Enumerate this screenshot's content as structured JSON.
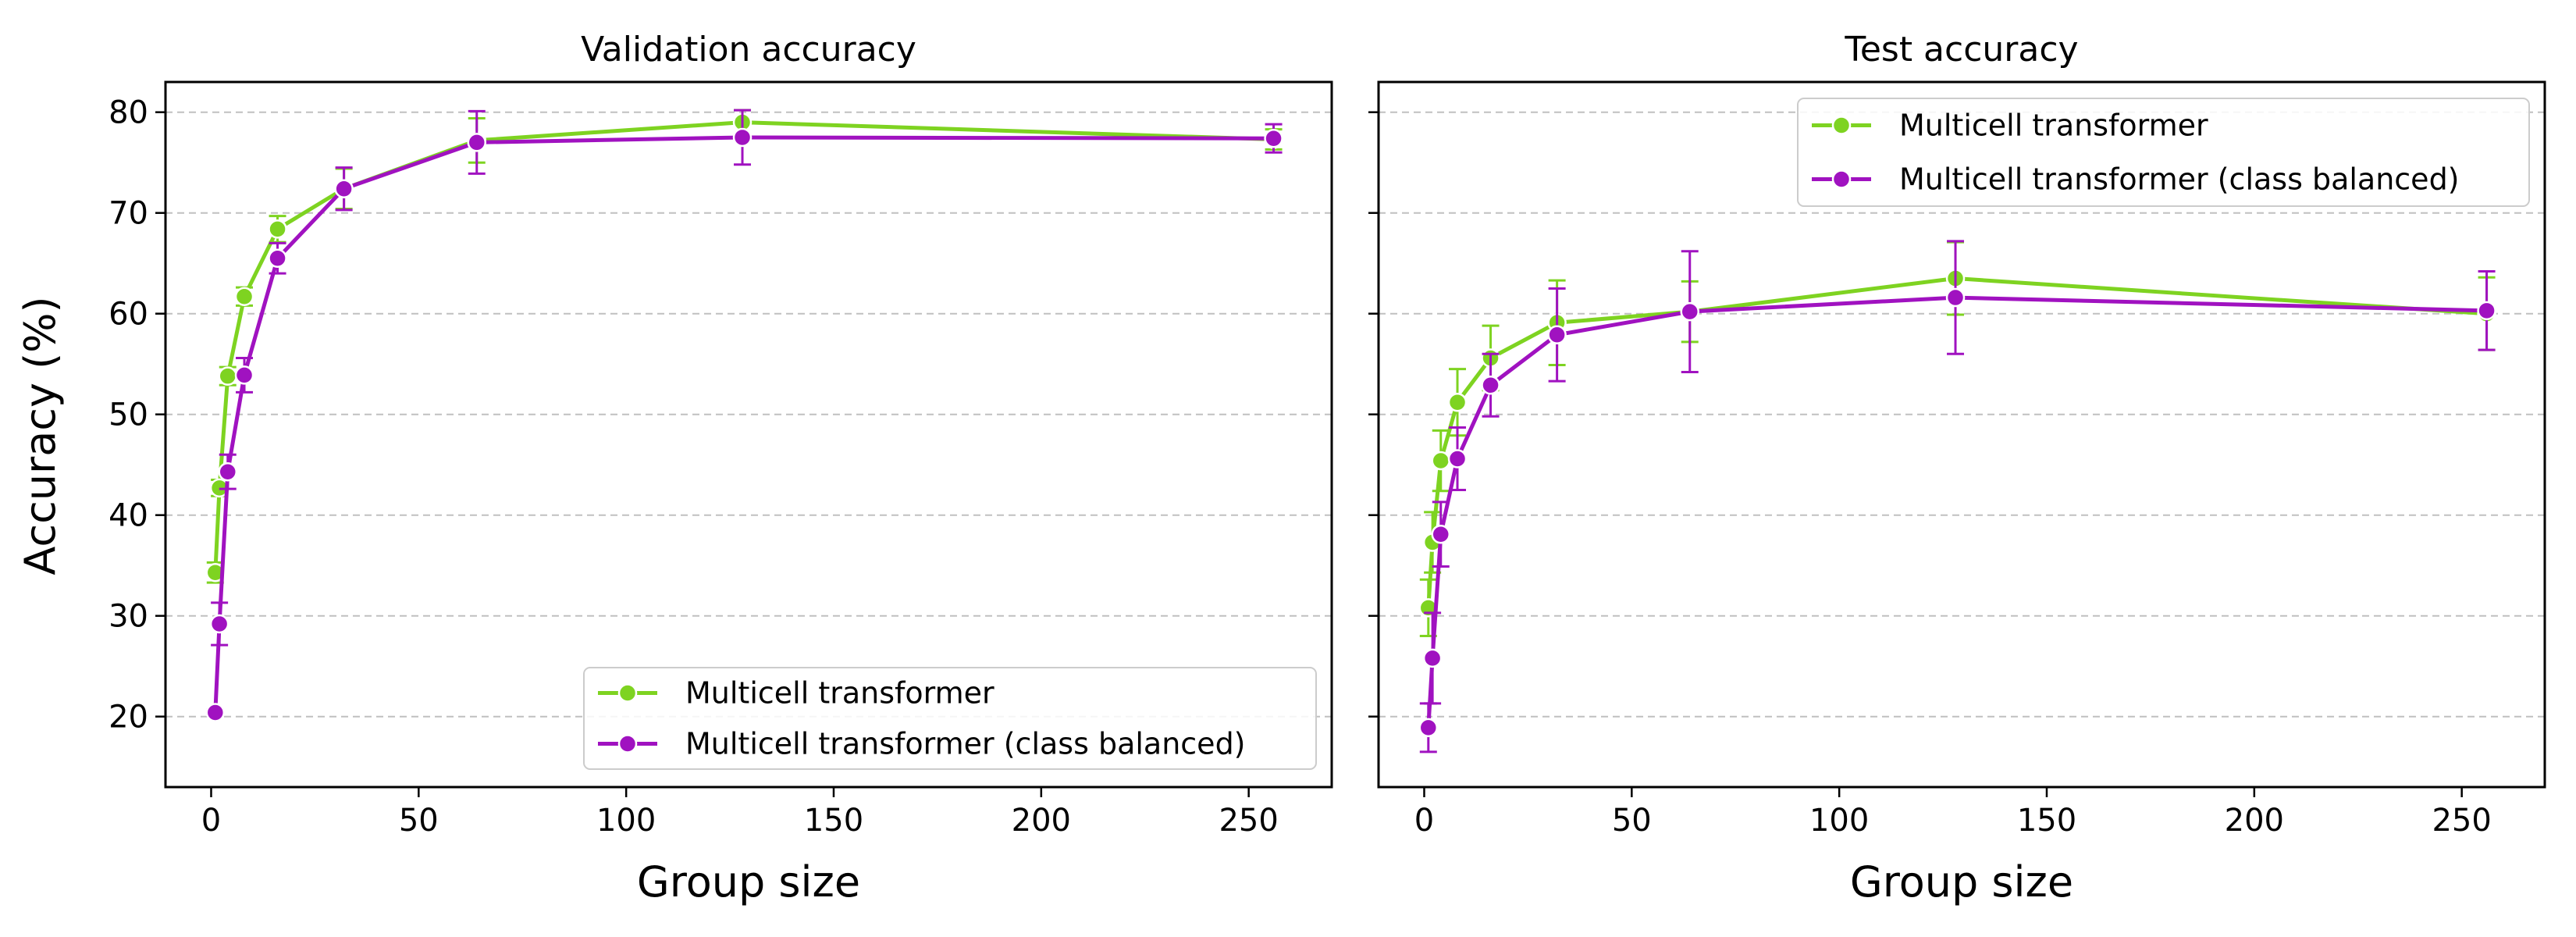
{
  "colors": {
    "series_1": "#7ed321",
    "series_2": "#a012c0",
    "grid": "#c0c0c0",
    "frame": "#000000"
  },
  "figure": {
    "ylabel": "Accuracy (%)"
  },
  "chart_data": [
    {
      "type": "line",
      "title": "Validation accuracy",
      "xlabel": "Group size",
      "ylabel": "Accuracy (%)",
      "xlim": [
        -11,
        270
      ],
      "ylim": [
        13,
        83
      ],
      "x_ticks": [
        0,
        50,
        100,
        150,
        200,
        250
      ],
      "y_ticks": [
        20,
        30,
        40,
        50,
        60,
        70,
        80
      ],
      "grid": "horizontal dashed",
      "legend_position": "lower-right",
      "series": [
        {
          "name": "Multicell transformer",
          "color_key": "series_1",
          "x": [
            1,
            2,
            4,
            8,
            16,
            32,
            64,
            128,
            256
          ],
          "y": [
            34.3,
            42.7,
            53.8,
            61.7,
            68.4,
            72.4,
            77.2,
            79.0,
            77.3
          ],
          "err": [
            1.0,
            0.8,
            0.9,
            0.9,
            1.3,
            2.0,
            2.2,
            1.2,
            1.0
          ]
        },
        {
          "name": "Multicell transformer (class balanced)",
          "color_key": "series_2",
          "x": [
            1,
            2,
            4,
            8,
            16,
            32,
            64,
            128,
            256
          ],
          "y": [
            20.4,
            29.2,
            44.3,
            53.9,
            65.5,
            72.4,
            77.0,
            77.5,
            77.4
          ],
          "err": [
            0.3,
            2.1,
            1.7,
            1.7,
            1.5,
            2.1,
            3.1,
            2.7,
            1.4
          ]
        }
      ]
    },
    {
      "type": "line",
      "title": "Test accuracy",
      "xlabel": "Group size",
      "ylabel": "",
      "xlim": [
        -11,
        270
      ],
      "ylim": [
        13,
        83
      ],
      "x_ticks": [
        0,
        50,
        100,
        150,
        200,
        250
      ],
      "y_ticks": [
        20,
        30,
        40,
        50,
        60,
        70,
        80
      ],
      "grid": "horizontal dashed",
      "legend_position": "top-right",
      "series": [
        {
          "name": "Multicell transformer",
          "color_key": "series_1",
          "x": [
            1,
            2,
            4,
            8,
            16,
            32,
            64,
            128,
            256
          ],
          "y": [
            30.8,
            37.3,
            45.4,
            51.2,
            55.6,
            59.1,
            60.2,
            63.5,
            60.0
          ],
          "err": [
            2.8,
            3.0,
            3.0,
            3.3,
            3.2,
            4.2,
            3.0,
            3.6,
            3.6
          ]
        },
        {
          "name": "Multicell transformer (class balanced)",
          "color_key": "series_2",
          "x": [
            1,
            2,
            4,
            8,
            16,
            32,
            64,
            128,
            256
          ],
          "y": [
            18.9,
            25.8,
            38.1,
            45.6,
            52.9,
            57.9,
            60.2,
            61.6,
            60.3
          ],
          "err": [
            2.4,
            4.5,
            3.2,
            3.1,
            3.1,
            4.6,
            6.0,
            5.6,
            3.9
          ]
        }
      ]
    }
  ]
}
